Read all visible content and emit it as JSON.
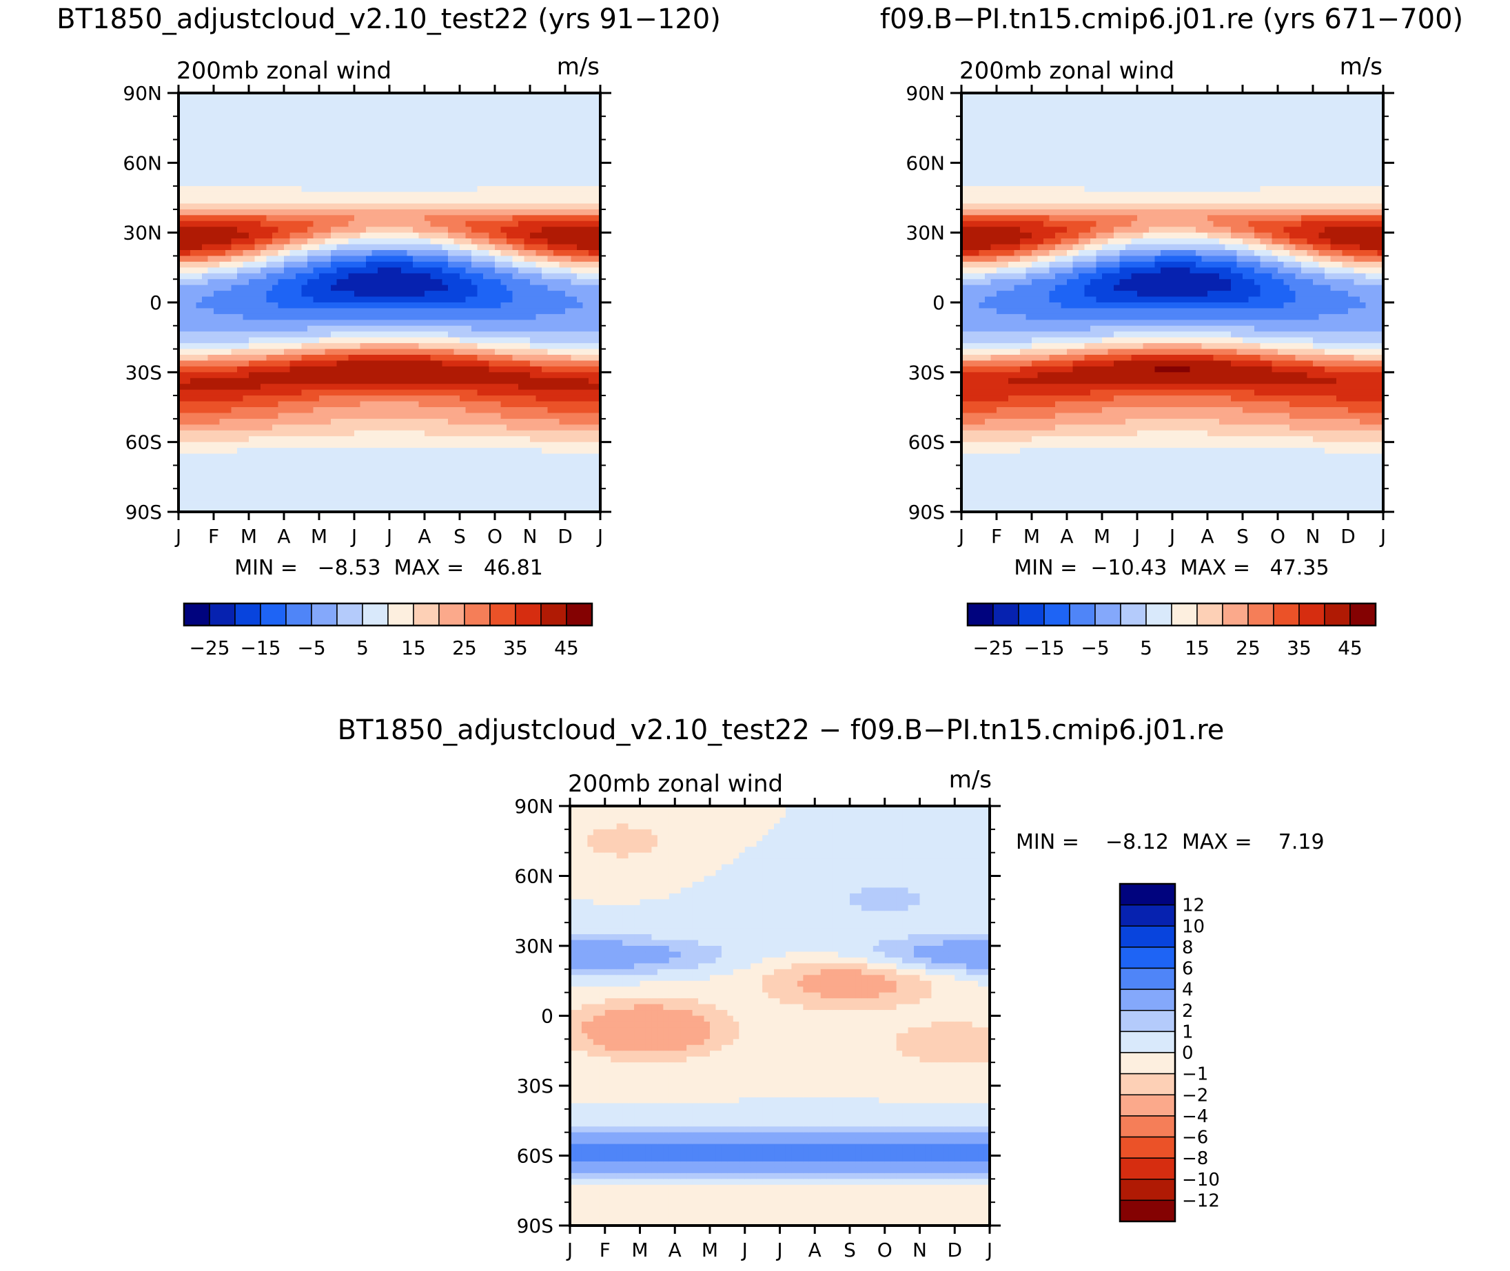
{
  "figure": {
    "units": "m/s",
    "variable": "200mb  zonal  wind"
  },
  "chart_data": [
    {
      "type": "heatmap",
      "id": "control",
      "title": "BT1850_adjustcloud_v2.10_test22 (yrs 91−120)",
      "left_label": "200mb  zonal  wind",
      "right_label": "m/s",
      "stats": "MIN =   −8.53  MAX =   46.81",
      "min": -8.53,
      "max": 46.81,
      "x_ticks": [
        "J",
        "F",
        "M",
        "A",
        "M",
        "J",
        "J",
        "A",
        "S",
        "O",
        "N",
        "D",
        "J"
      ],
      "y_ticks": [
        "90N",
        "60N",
        "30N",
        "0",
        "30S",
        "60S",
        "90S"
      ],
      "y_values": [
        90,
        60,
        30,
        0,
        -30,
        -60,
        -90
      ],
      "colorbar_levels": [
        -30,
        -25,
        -20,
        -15,
        -10,
        -5,
        0,
        5,
        10,
        15,
        20,
        25,
        30,
        35,
        40,
        45
      ],
      "colorbar_labels": [
        "−25",
        "−15",
        "−5",
        "5",
        "15",
        "25",
        "35",
        "45"
      ]
    },
    {
      "type": "heatmap",
      "id": "reference",
      "title": "f09.B−PI.tn15.cmip6.j01.re (yrs 671−700)",
      "left_label": "200mb  zonal  wind",
      "right_label": "m/s",
      "stats": "MIN =  −10.43  MAX =   47.35",
      "min": -10.43,
      "max": 47.35,
      "x_ticks": [
        "J",
        "F",
        "M",
        "A",
        "M",
        "J",
        "J",
        "A",
        "S",
        "O",
        "N",
        "D",
        "J"
      ],
      "y_ticks": [
        "90N",
        "60N",
        "30N",
        "0",
        "30S",
        "60S",
        "90S"
      ],
      "y_values": [
        90,
        60,
        30,
        0,
        -30,
        -60,
        -90
      ],
      "colorbar_levels": [
        -30,
        -25,
        -20,
        -15,
        -10,
        -5,
        0,
        5,
        10,
        15,
        20,
        25,
        30,
        35,
        40,
        45
      ],
      "colorbar_labels": [
        "−25",
        "−15",
        "−5",
        "5",
        "15",
        "25",
        "35",
        "45"
      ]
    },
    {
      "type": "heatmap",
      "id": "difference",
      "title": "BT1850_adjustcloud_v2.10_test22 − f09.B−PI.tn15.cmip6.j01.re",
      "left_label": "200mb  zonal  wind",
      "right_label": "m/s",
      "stats": "MIN =    −8.12  MAX =    7.19",
      "min": -8.12,
      "max": 7.19,
      "x_ticks": [
        "J",
        "F",
        "M",
        "A",
        "M",
        "J",
        "J",
        "A",
        "S",
        "O",
        "N",
        "D",
        "J"
      ],
      "y_ticks": [
        "90N",
        "60N",
        "30N",
        "0",
        "30S",
        "60S",
        "90S"
      ],
      "y_values": [
        90,
        60,
        30,
        0,
        -30,
        -60,
        -90
      ],
      "colorbar_levels": [
        -12,
        -10,
        -8,
        -6,
        -4,
        -2,
        -1,
        0,
        1,
        2,
        4,
        6,
        8,
        10,
        12
      ],
      "colorbar_labels": [
        "12",
        "10",
        "8",
        "6",
        "4",
        "2",
        "1",
        "0",
        "−1",
        "−2",
        "−4",
        "−6",
        "−8",
        "−10",
        "−12"
      ]
    }
  ],
  "colors": {
    "abs_scale": [
      "#00037e",
      "#0622b0",
      "#0844dd",
      "#1e64f5",
      "#4f85f8",
      "#84a8fb",
      "#b4cbfb",
      "#d9e9fb",
      "#fdefdf",
      "#fdd0b6",
      "#fba98b",
      "#f57e58",
      "#eb5228",
      "#d62d10",
      "#b01a04",
      "#840202"
    ],
    "diff_scale": [
      "#840202",
      "#b01a04",
      "#d62d10",
      "#eb5228",
      "#f57e58",
      "#fba98b",
      "#fdd0b6",
      "#fdefdf",
      "#d9e9fb",
      "#b4cbfb",
      "#84a8fb",
      "#4f85f8",
      "#1e64f5",
      "#0844dd",
      "#0622b0",
      "#00037e"
    ]
  }
}
